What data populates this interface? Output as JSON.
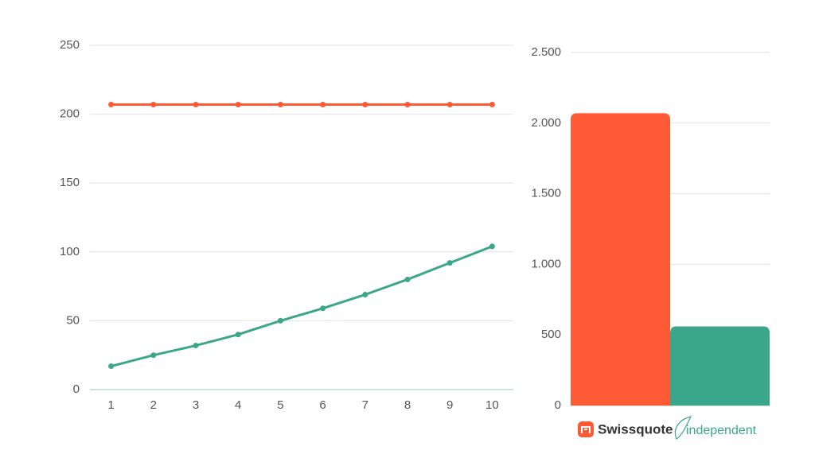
{
  "chart_data": [
    {
      "type": "line",
      "categories": [
        "1",
        "2",
        "3",
        "4",
        "5",
        "6",
        "7",
        "8",
        "9",
        "10"
      ],
      "series": [
        {
          "color": "#ff5a36",
          "values": [
            207,
            207,
            207,
            207,
            207,
            207,
            207,
            207,
            207,
            207
          ]
        },
        {
          "color": "#3aa68a",
          "values": [
            17,
            25,
            32,
            40,
            50,
            59,
            69,
            80,
            92,
            104
          ]
        }
      ],
      "ylim": [
        0,
        250
      ],
      "yticks": [
        0,
        50,
        100,
        150,
        200,
        250
      ],
      "grid": true
    },
    {
      "type": "bar",
      "categories": [
        "Swissquote",
        "independent"
      ],
      "values": [
        2070,
        560
      ],
      "colors": [
        "#ff5a36",
        "#3aa68a"
      ],
      "ylim": [
        0,
        2500
      ],
      "yticks": [
        0,
        500,
        {
          "value": 1000,
          "label": "1.000"
        },
        {
          "value": 1500,
          "label": "1.500"
        },
        {
          "value": 2000,
          "label": "2.000"
        },
        {
          "value": 2500,
          "label": "2.500"
        }
      ],
      "grid": true
    }
  ]
}
